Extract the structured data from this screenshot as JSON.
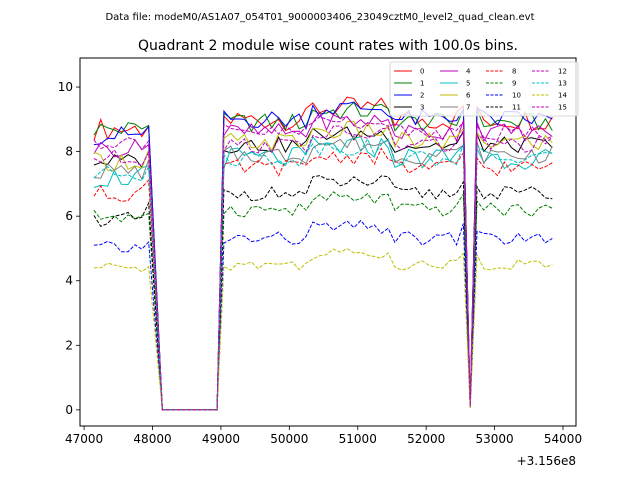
{
  "header": {
    "suptitle": "Data file: modeM0/AS1A07_054T01_9000003406_23049cztM0_level2_quad_clean.evt"
  },
  "chart_data": {
    "type": "line",
    "title": "Quadrant 2 module wise count rates with 100.0s bins.",
    "xlabel": "",
    "ylabel": "",
    "x_offset_label": "+3.156e8",
    "xlim": [
      46940,
      54190
    ],
    "ylim": [
      -0.5,
      10.9
    ],
    "x_ticks": [
      47000,
      48000,
      49000,
      50000,
      51000,
      52000,
      53000,
      54000
    ],
    "x_tick_labels": [
      "47000",
      "48000",
      "49000",
      "50000",
      "51000",
      "52000",
      "53000",
      "54000"
    ],
    "y_ticks": [
      0,
      2,
      4,
      6,
      8,
      10
    ],
    "y_tick_labels": [
      "0",
      "2",
      "4",
      "6",
      "8",
      "10"
    ],
    "grid": false,
    "legend_position": "top-right",
    "legend_columns": 4,
    "x_segments": [
      {
        "start": 47143.5,
        "end": 47943.5,
        "step": 100
      },
      {
        "start": 48143.5,
        "end": 48943.5,
        "step": 100
      },
      {
        "start": 49043.5,
        "end": 52543.5,
        "step": 100
      },
      {
        "start": 52643.5,
        "end": 52643.5,
        "step": 100
      },
      {
        "start": 52743.5,
        "end": 53843.5,
        "step": 100
      }
    ],
    "series": [
      {
        "name": "0",
        "color": "#ff0000",
        "dash": "solid",
        "base": 9.0,
        "low": 8.7,
        "dip": 0.15,
        "step": 0.35,
        "phase": 0
      },
      {
        "name": "1",
        "color": "#008000",
        "dash": "solid",
        "base": 8.9,
        "low": 8.7,
        "dip": 0.14,
        "step": 0.3,
        "phase": 1
      },
      {
        "name": "2",
        "color": "#0000ff",
        "dash": "solid",
        "base": 9.0,
        "low": 8.5,
        "dip": 0.13,
        "step": 0.3,
        "phase": 2
      },
      {
        "name": "3",
        "color": "#000000",
        "dash": "solid",
        "base": 8.2,
        "low": 7.7,
        "dip": 0.12,
        "step": 0.25,
        "phase": 3
      },
      {
        "name": "4",
        "color": "#bf00bf",
        "dash": "solid",
        "base": 8.6,
        "low": 8.1,
        "dip": 0.12,
        "step": 0.28,
        "phase": 4
      },
      {
        "name": "5",
        "color": "#00bfbf",
        "dash": "solid",
        "base": 7.8,
        "low": 7.2,
        "dip": 0.11,
        "step": 0.35,
        "phase": 5
      },
      {
        "name": "6",
        "color": "#bfbf00",
        "dash": "solid",
        "base": 8.3,
        "low": 7.7,
        "dip": 0.12,
        "step": 0.3,
        "phase": 6
      },
      {
        "name": "7",
        "color": "#808080",
        "dash": "solid",
        "base": 7.9,
        "low": 7.4,
        "dip": 0.11,
        "step": 0.28,
        "phase": 7
      },
      {
        "name": "8",
        "color": "#ff0000",
        "dash": "dashed",
        "base": 7.5,
        "low": 6.7,
        "dip": 0.1,
        "step": 0.25,
        "phase": 8
      },
      {
        "name": "9",
        "color": "#008000",
        "dash": "dashed",
        "base": 6.2,
        "low": 6.0,
        "dip": 0.09,
        "step": 0.22,
        "phase": 9
      },
      {
        "name": "10",
        "color": "#0000ff",
        "dash": "dashed",
        "base": 5.3,
        "low": 5.0,
        "dip": 0.07,
        "step": 0.22,
        "phase": 10
      },
      {
        "name": "11",
        "color": "#000000",
        "dash": "dashed",
        "base": 6.7,
        "low": 5.9,
        "dip": 0.09,
        "step": 0.22,
        "phase": 11
      },
      {
        "name": "12",
        "color": "#bf00bf",
        "dash": "dashed",
        "base": 8.2,
        "low": 7.8,
        "dip": 0.12,
        "step": 0.26,
        "phase": 12
      },
      {
        "name": "13",
        "color": "#00bfbf",
        "dash": "dashed",
        "base": 7.8,
        "low": 7.3,
        "dip": 0.11,
        "step": 0.26,
        "phase": 13
      },
      {
        "name": "14",
        "color": "#bfbf00",
        "dash": "dashed",
        "base": 4.5,
        "low": 4.4,
        "dip": 0.06,
        "step": 0.18,
        "phase": 14
      },
      {
        "name": "15",
        "color": "#bf00bf",
        "dash": "dashed",
        "base": 8.6,
        "low": 8.3,
        "dip": 0.12,
        "step": 0.26,
        "phase": 15
      }
    ]
  }
}
